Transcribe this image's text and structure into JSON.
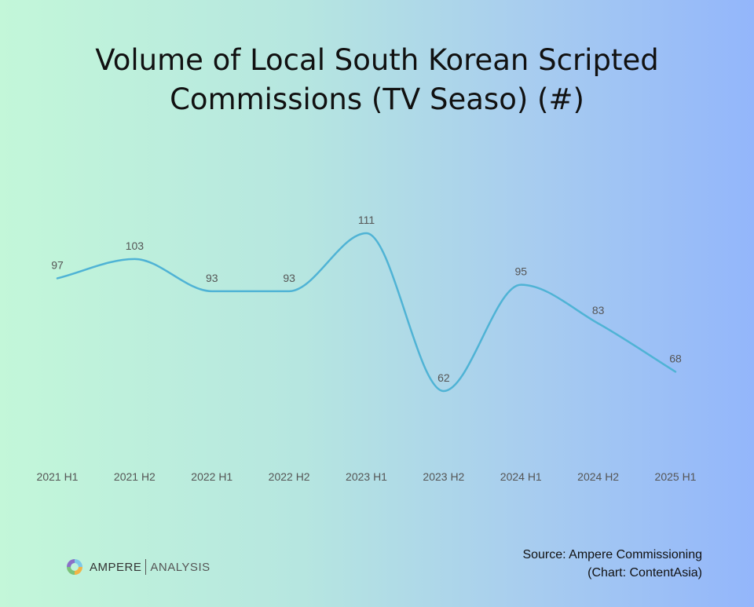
{
  "chart_data": {
    "type": "line",
    "title_line1": "Volume of Local South Korean Scripted",
    "title_line2": "Commissions (TV Seaso) (#)",
    "categories": [
      "2021 H1",
      "2021 H2",
      "2022 H1",
      "2022 H2",
      "2023 H1",
      "2023 H2",
      "2024 H1",
      "2024 H2",
      "2025 H1"
    ],
    "series": [
      {
        "values": [
          97,
          103,
          93,
          93,
          111,
          62,
          95,
          83,
          68
        ]
      }
    ],
    "xlabel": "",
    "ylabel": "",
    "ylim": [
      62,
      111
    ],
    "grid": false,
    "data_labels": true,
    "line_color": "#4fb3d5",
    "smooth": true
  },
  "source": {
    "line1": "Source: Ampere Commissioning",
    "line2": "(Chart: ContentAsia)"
  },
  "logo": {
    "brand": "AMPERE",
    "sub": "ANALYSIS",
    "icon": "ampere-ring-icon"
  }
}
